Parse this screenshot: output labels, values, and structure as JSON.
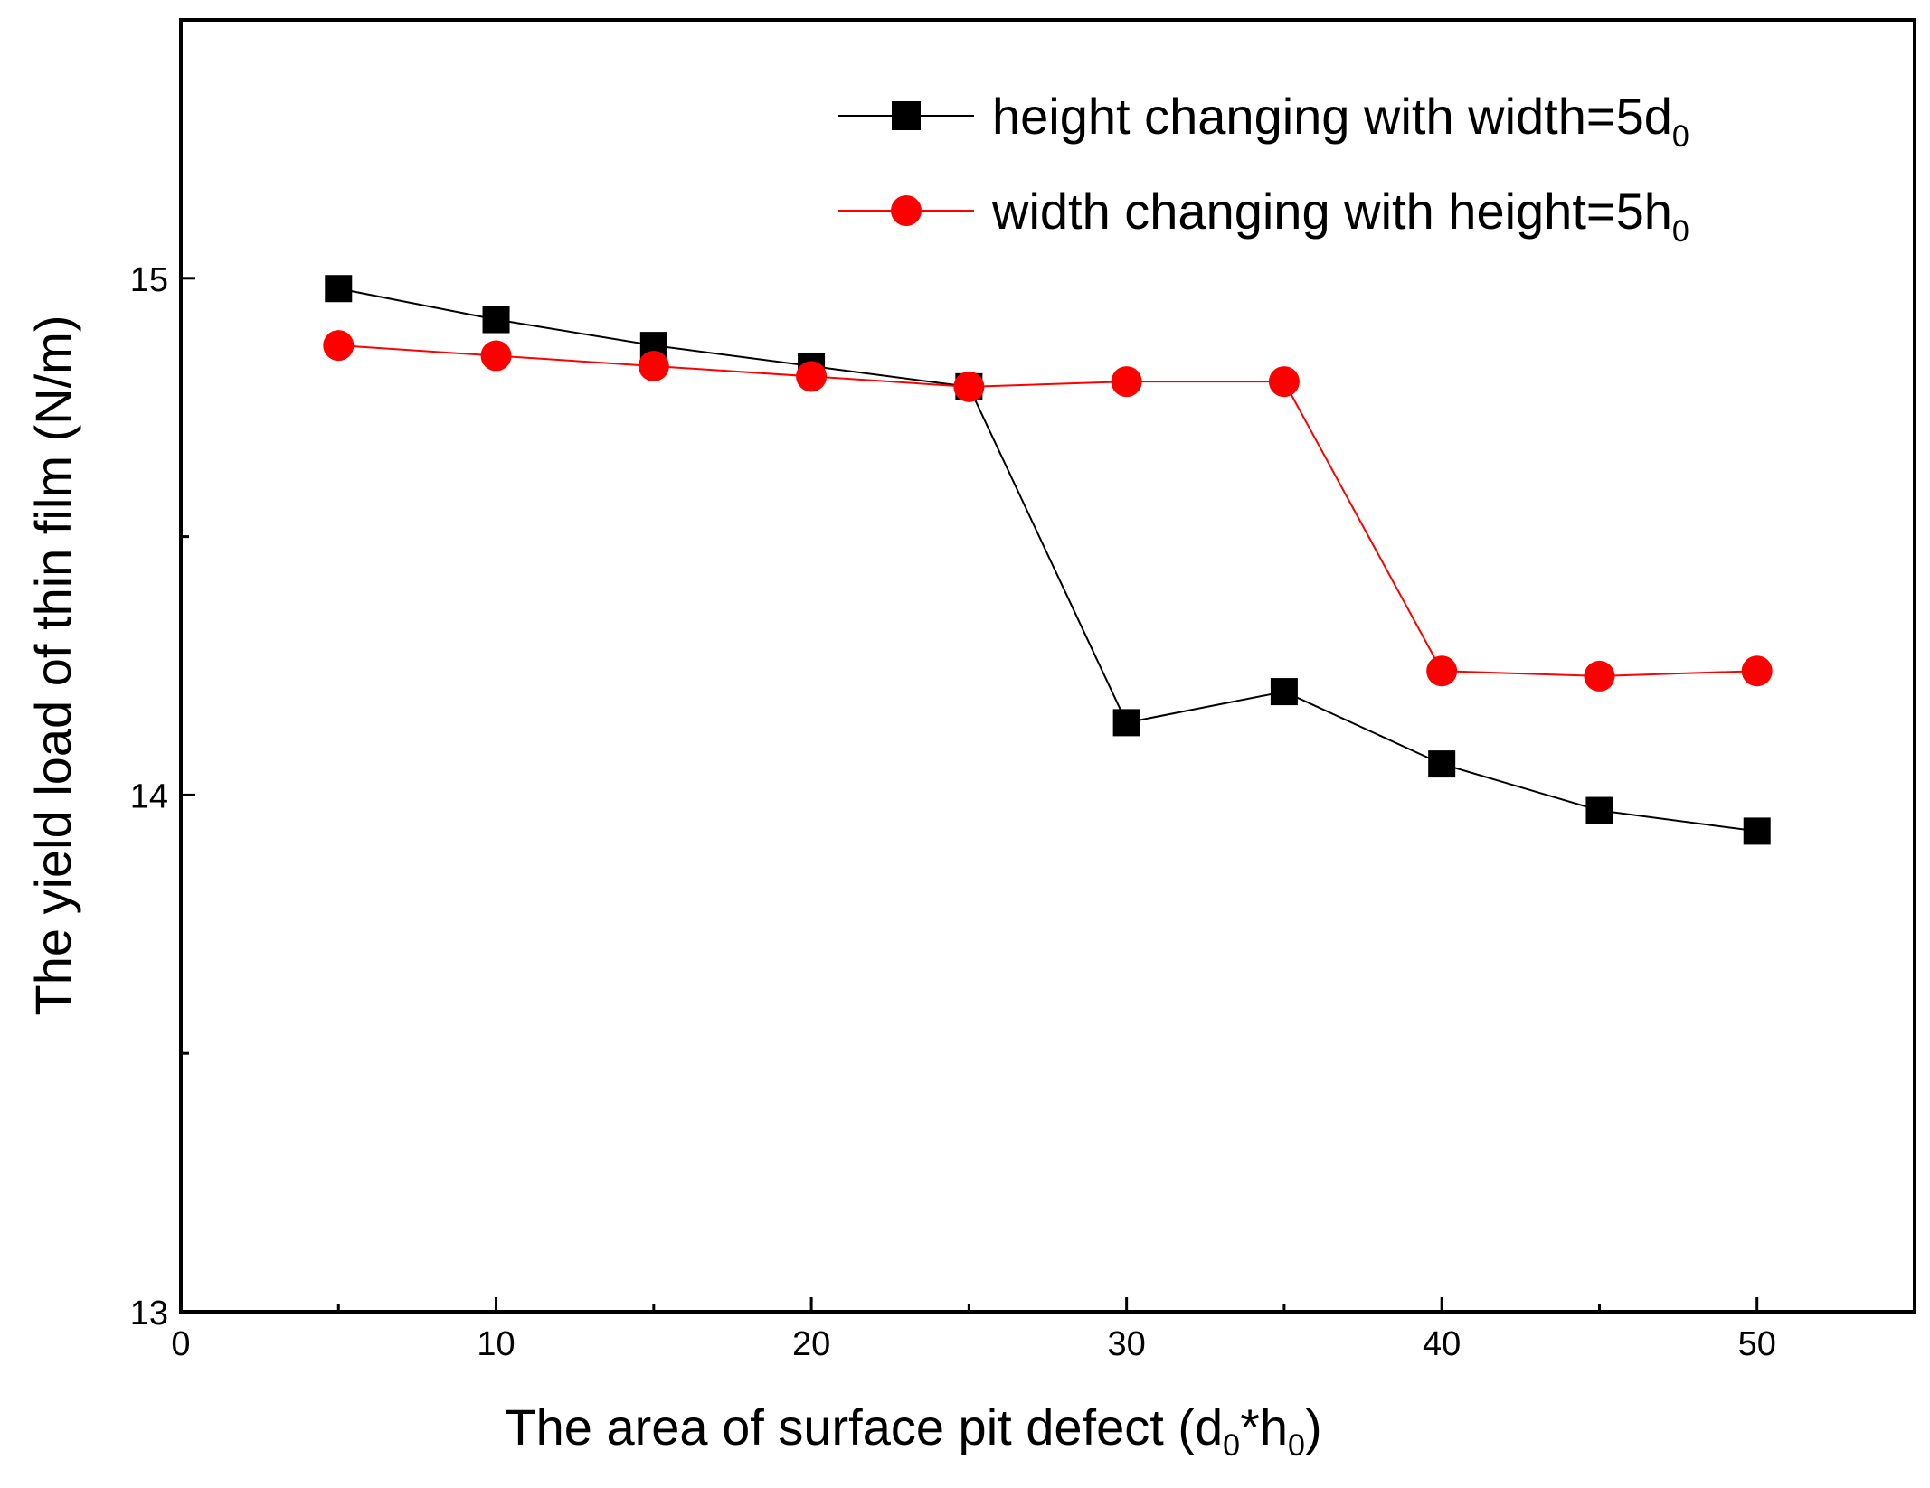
{
  "chart_data": {
    "type": "line",
    "title": "",
    "xlabel": {
      "main": "The area of surface pit defect (d",
      "sub1": "0",
      "mid": "*h",
      "sub2": "0",
      "end": ")"
    },
    "ylabel": "The yield load of thin film (N/m)",
    "xlim": [
      0,
      55
    ],
    "ylim": [
      13,
      15.5
    ],
    "xticks": [
      0,
      10,
      20,
      30,
      40,
      50
    ],
    "yticks": [
      13,
      14,
      15
    ],
    "x": [
      5,
      10,
      15,
      20,
      25,
      30,
      35,
      40,
      45,
      50
    ],
    "series": [
      {
        "name": "height changing with width=5d0",
        "legend_main": "height changing with width=5d",
        "legend_sub": "0",
        "color": "#000000",
        "marker": "square",
        "values": [
          14.98,
          14.92,
          14.87,
          14.83,
          14.79,
          14.14,
          14.2,
          14.06,
          13.97,
          13.93
        ]
      },
      {
        "name": "width changing with height=5h0",
        "legend_main": "width changing with height=5h",
        "legend_sub": "0",
        "color": "#ff0000",
        "marker": "circle",
        "values": [
          14.87,
          14.85,
          14.83,
          14.81,
          14.79,
          14.8,
          14.8,
          14.24,
          14.23,
          14.24
        ]
      }
    ]
  }
}
